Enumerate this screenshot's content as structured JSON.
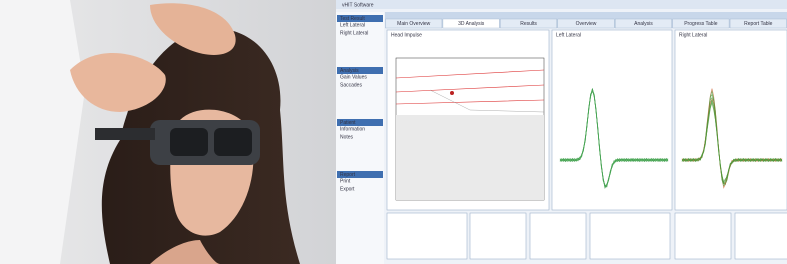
{
  "window": {
    "title": "vHIT Software"
  },
  "tabs": [
    "Main Overview",
    "3D Analysis",
    "Results",
    "Overview",
    "Analysis",
    "Progress Table",
    "Report Table"
  ],
  "sidebar": [
    {
      "title": "Test Result",
      "items": [
        "Left Lateral",
        "Right Lateral"
      ]
    },
    {
      "title": "Analysis",
      "items": [
        "Gain Values",
        "Saccades"
      ]
    },
    {
      "title": "Patient",
      "items": [
        "Information",
        "Notes"
      ]
    },
    {
      "title": "Report",
      "items": [
        "Print",
        "Export"
      ]
    }
  ],
  "panels": {
    "main": "Head Impulse",
    "left": "Left Lateral",
    "right": "Right Lateral"
  }
}
